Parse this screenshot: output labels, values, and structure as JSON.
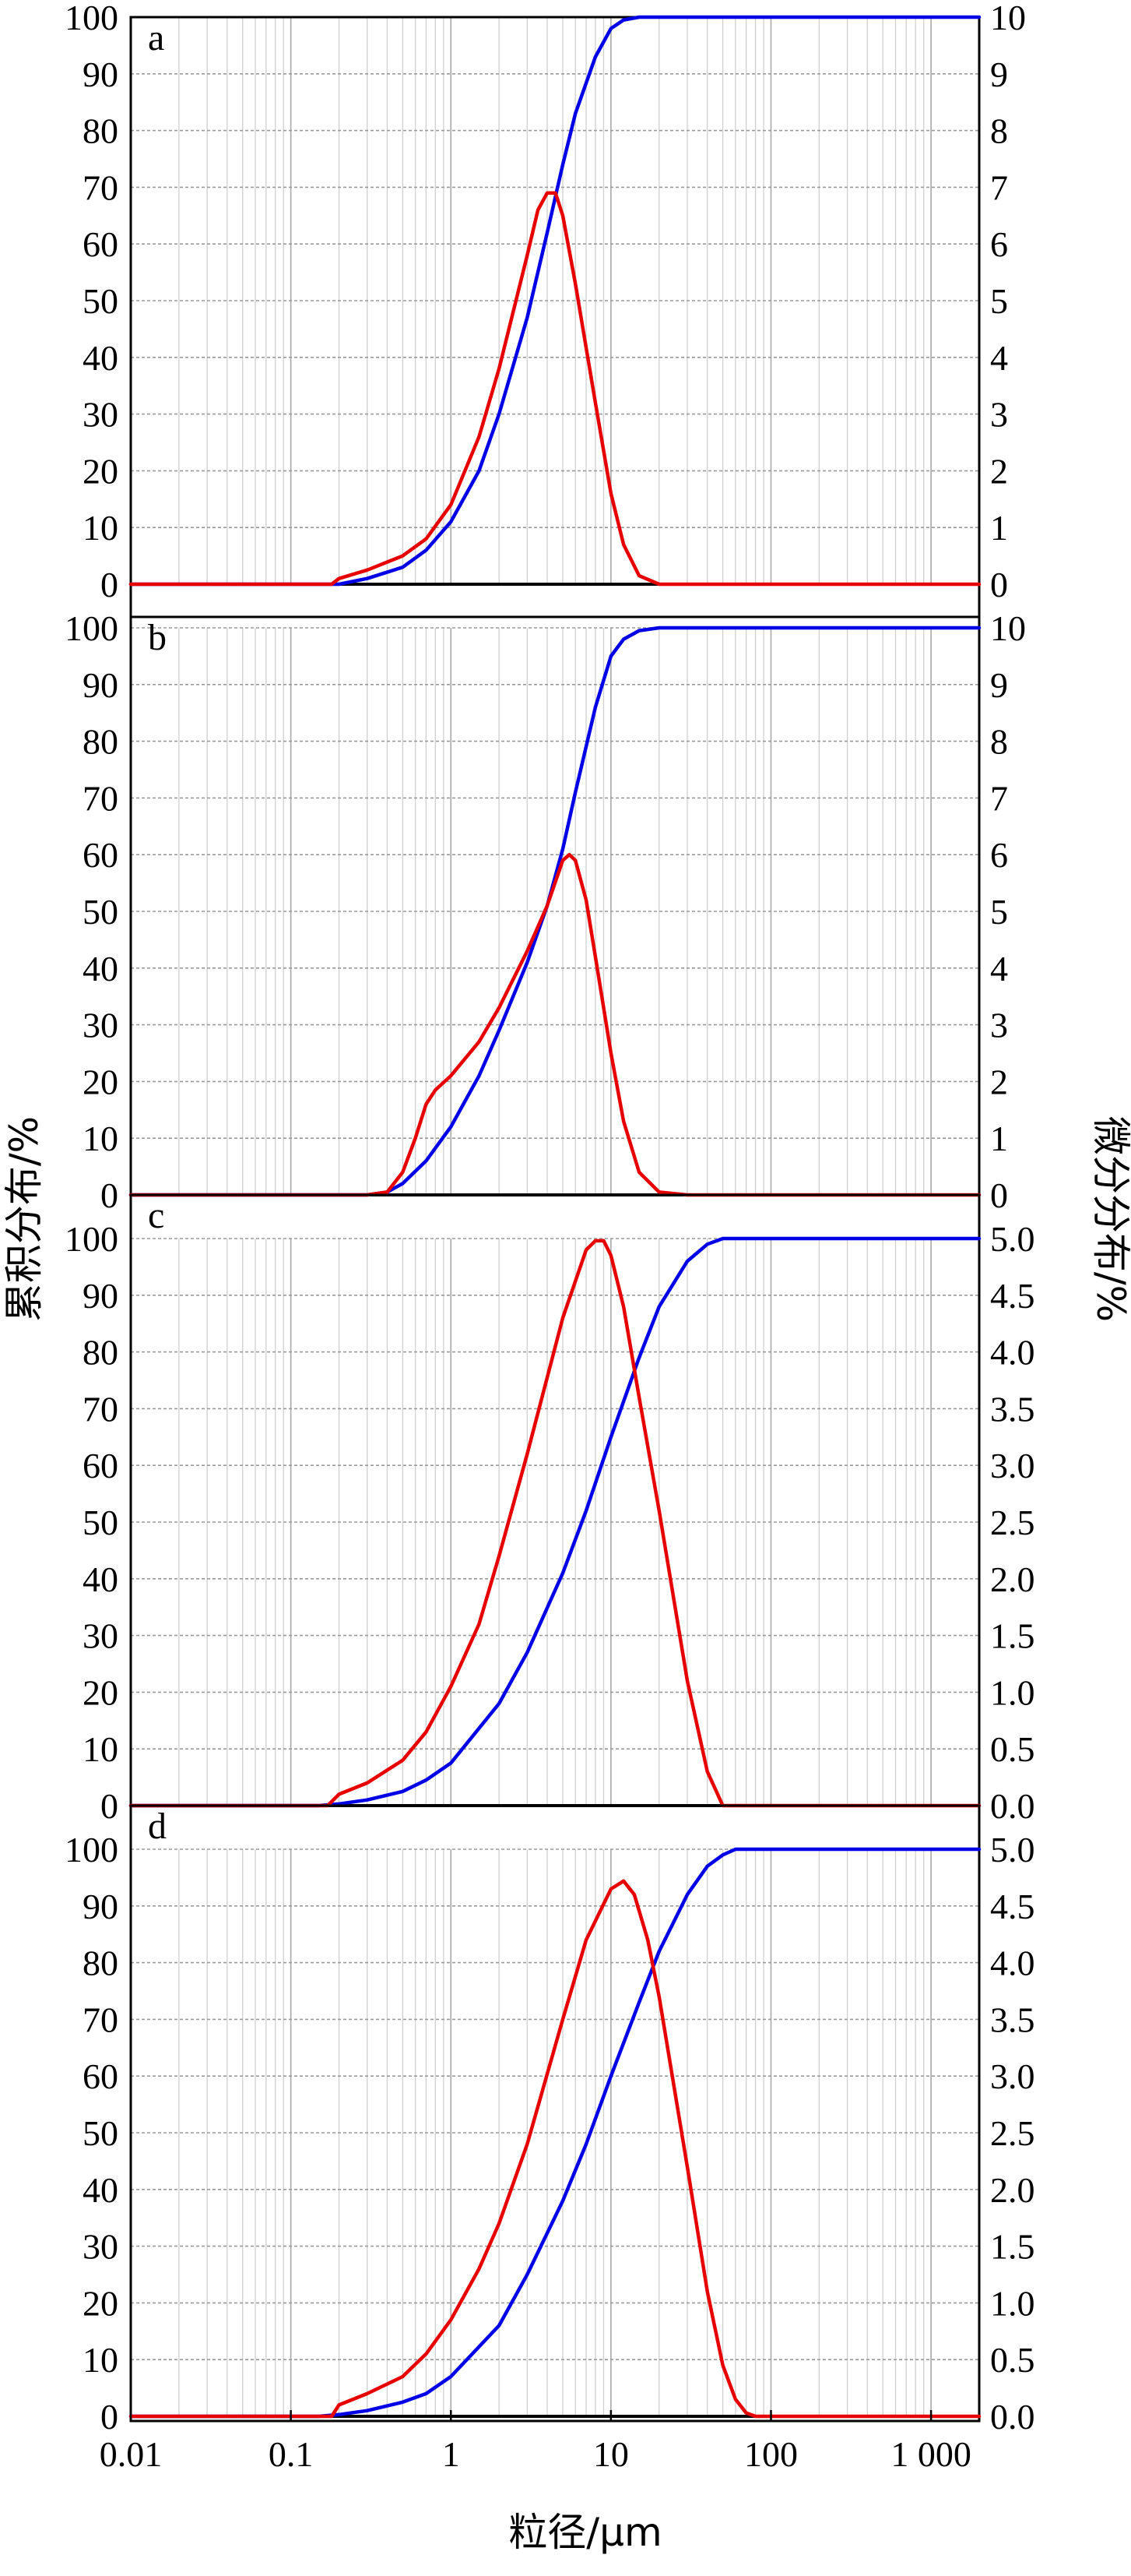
{
  "chart_data": [
    {
      "type": "line",
      "panel": "a",
      "xscale": "log",
      "xlim": [
        0.01,
        2000
      ],
      "ylim_left": [
        0,
        100
      ],
      "ylim_right": [
        0,
        10
      ],
      "yticks_left": [
        "0",
        "10",
        "20",
        "30",
        "40",
        "50",
        "60",
        "70",
        "80",
        "90",
        "100"
      ],
      "yticks_right": [
        "0",
        "1",
        "2",
        "3",
        "4",
        "5",
        "6",
        "7",
        "8",
        "9",
        "10"
      ],
      "series": [
        {
          "name": "",
          "color": "#0000e6",
          "axis": "left",
          "x": [
            0.01,
            0.2,
            0.3,
            0.5,
            0.7,
            1,
            1.5,
            2,
            3,
            4,
            5,
            6,
            8,
            10,
            12,
            15,
            20,
            50,
            100,
            1000,
            2000
          ],
          "y": [
            0,
            0,
            1,
            3,
            6,
            11,
            20,
            30,
            47,
            62,
            74,
            83,
            93,
            98,
            99.5,
            100,
            100,
            100,
            100,
            100,
            100
          ]
        },
        {
          "name": "",
          "color": "#e60000",
          "axis": "right",
          "x": [
            0.01,
            0.18,
            0.2,
            0.3,
            0.5,
            0.7,
            1,
            1.5,
            2,
            3,
            3.5,
            4,
            4.5,
            5,
            6,
            8,
            10,
            12,
            15,
            20,
            50,
            2000
          ],
          "y": [
            0,
            0,
            0.1,
            0.25,
            0.5,
            0.8,
            1.4,
            2.6,
            3.8,
            5.8,
            6.6,
            6.9,
            6.9,
            6.5,
            5.3,
            3.2,
            1.6,
            0.7,
            0.15,
            0,
            0,
            0
          ]
        }
      ]
    },
    {
      "type": "line",
      "panel": "b",
      "xscale": "log",
      "xlim": [
        0.01,
        2000
      ],
      "ylim_left": [
        0,
        100
      ],
      "ylim_right": [
        0,
        10
      ],
      "yticks_left": [
        "0",
        "10",
        "20",
        "30",
        "40",
        "50",
        "60",
        "70",
        "80",
        "90",
        "100"
      ],
      "yticks_right": [
        "0",
        "1",
        "2",
        "3",
        "4",
        "5",
        "6",
        "7",
        "8",
        "9",
        "10"
      ],
      "series": [
        {
          "name": "",
          "color": "#0000e6",
          "axis": "left",
          "x": [
            0.01,
            0.3,
            0.4,
            0.5,
            0.7,
            1,
            1.5,
            2,
            3,
            4,
            5,
            6,
            8,
            10,
            12,
            15,
            20,
            50,
            2000
          ],
          "y": [
            0,
            0,
            0.5,
            2,
            6,
            12,
            21,
            29,
            41,
            51,
            61,
            71,
            86,
            95,
            98,
            99.5,
            100,
            100,
            100
          ]
        },
        {
          "name": "",
          "color": "#e60000",
          "axis": "right",
          "x": [
            0.01,
            0.3,
            0.4,
            0.5,
            0.6,
            0.7,
            0.8,
            1,
            1.5,
            2,
            3,
            4,
            5,
            5.5,
            6,
            7,
            8,
            10,
            12,
            15,
            20,
            30,
            2000
          ],
          "y": [
            0,
            0,
            0.05,
            0.4,
            1.0,
            1.6,
            1.85,
            2.1,
            2.7,
            3.3,
            4.3,
            5.1,
            5.9,
            6.0,
            5.9,
            5.2,
            4.2,
            2.5,
            1.3,
            0.4,
            0.05,
            0,
            0
          ]
        }
      ]
    },
    {
      "type": "line",
      "panel": "c",
      "xscale": "log",
      "xlim": [
        0.01,
        2000
      ],
      "ylim_left": [
        0,
        100
      ],
      "ylim_right": [
        0,
        5
      ],
      "yticks_left": [
        "0",
        "10",
        "20",
        "30",
        "40",
        "50",
        "60",
        "70",
        "80",
        "90",
        "100"
      ],
      "yticks_right": [
        "0.0",
        "0.5",
        "1.0",
        "1.5",
        "2.0",
        "2.5",
        "3.0",
        "3.5",
        "4.0",
        "4.5",
        "5.0"
      ],
      "series": [
        {
          "name": "",
          "color": "#0000e6",
          "axis": "left",
          "x": [
            0.01,
            0.15,
            0.2,
            0.3,
            0.5,
            0.7,
            1,
            2,
            3,
            5,
            7,
            10,
            15,
            20,
            30,
            40,
            50,
            100,
            2000
          ],
          "y": [
            0,
            0,
            0.3,
            1,
            2.5,
            4.5,
            7.5,
            18,
            27,
            41,
            52,
            65,
            79,
            88,
            96,
            99,
            100,
            100,
            100
          ]
        },
        {
          "name": "",
          "color": "#e60000",
          "axis": "right",
          "x": [
            0.01,
            0.17,
            0.2,
            0.3,
            0.5,
            0.7,
            1,
            1.5,
            2,
            3,
            5,
            7,
            8,
            9,
            10,
            12,
            15,
            20,
            30,
            40,
            50,
            2000
          ],
          "y": [
            0,
            0,
            0.1,
            0.2,
            0.4,
            0.65,
            1.05,
            1.6,
            2.2,
            3.1,
            4.3,
            4.9,
            4.98,
            4.98,
            4.85,
            4.4,
            3.6,
            2.6,
            1.1,
            0.3,
            0,
            0
          ]
        }
      ]
    },
    {
      "type": "line",
      "panel": "d",
      "xscale": "log",
      "xlim": [
        0.01,
        2000
      ],
      "ylim_left": [
        0,
        100
      ],
      "ylim_right": [
        0,
        5
      ],
      "yticks_left": [
        "0",
        "10",
        "20",
        "30",
        "40",
        "50",
        "60",
        "70",
        "80",
        "90",
        "100"
      ],
      "yticks_right": [
        "0.0",
        "0.5",
        "1.0",
        "1.5",
        "2.0",
        "2.5",
        "3.0",
        "3.5",
        "4.0",
        "4.5",
        "5.0"
      ],
      "series": [
        {
          "name": "",
          "color": "#0000e6",
          "axis": "left",
          "x": [
            0.01,
            0.15,
            0.2,
            0.3,
            0.5,
            0.7,
            1,
            2,
            3,
            5,
            7,
            10,
            15,
            20,
            30,
            40,
            50,
            60,
            100,
            2000
          ],
          "y": [
            0,
            0,
            0.3,
            1,
            2.5,
            4,
            7,
            16,
            25,
            38,
            48,
            60,
            73,
            82,
            92,
            97,
            99,
            100,
            100,
            100
          ]
        },
        {
          "name": "",
          "color": "#e60000",
          "axis": "right",
          "x": [
            0.01,
            0.18,
            0.2,
            0.3,
            0.5,
            0.7,
            1,
            1.5,
            2,
            3,
            5,
            7,
            10,
            12,
            14,
            17,
            20,
            30,
            40,
            50,
            60,
            70,
            80,
            2000
          ],
          "y": [
            0,
            0,
            0.1,
            0.2,
            0.35,
            0.55,
            0.85,
            1.3,
            1.7,
            2.4,
            3.5,
            4.2,
            4.65,
            4.72,
            4.6,
            4.2,
            3.7,
            2.2,
            1.1,
            0.45,
            0.15,
            0.03,
            0,
            0
          ]
        }
      ]
    }
  ],
  "shared_axes": {
    "xlabel": "粒径/μm",
    "ylabel_left": "累积分布/%",
    "ylabel_right": "微分分布/%",
    "xticks": [
      {
        "value": 0.01,
        "label": "0.01"
      },
      {
        "value": 0.1,
        "label": "0.1"
      },
      {
        "value": 1,
        "label": "1"
      },
      {
        "value": 10,
        "label": "10"
      },
      {
        "value": 100,
        "label": "100"
      },
      {
        "value": 1000,
        "label": "1 000"
      }
    ],
    "grid": "on"
  },
  "colors": {
    "cumulative": "#0000e6",
    "differential": "#e60000"
  }
}
